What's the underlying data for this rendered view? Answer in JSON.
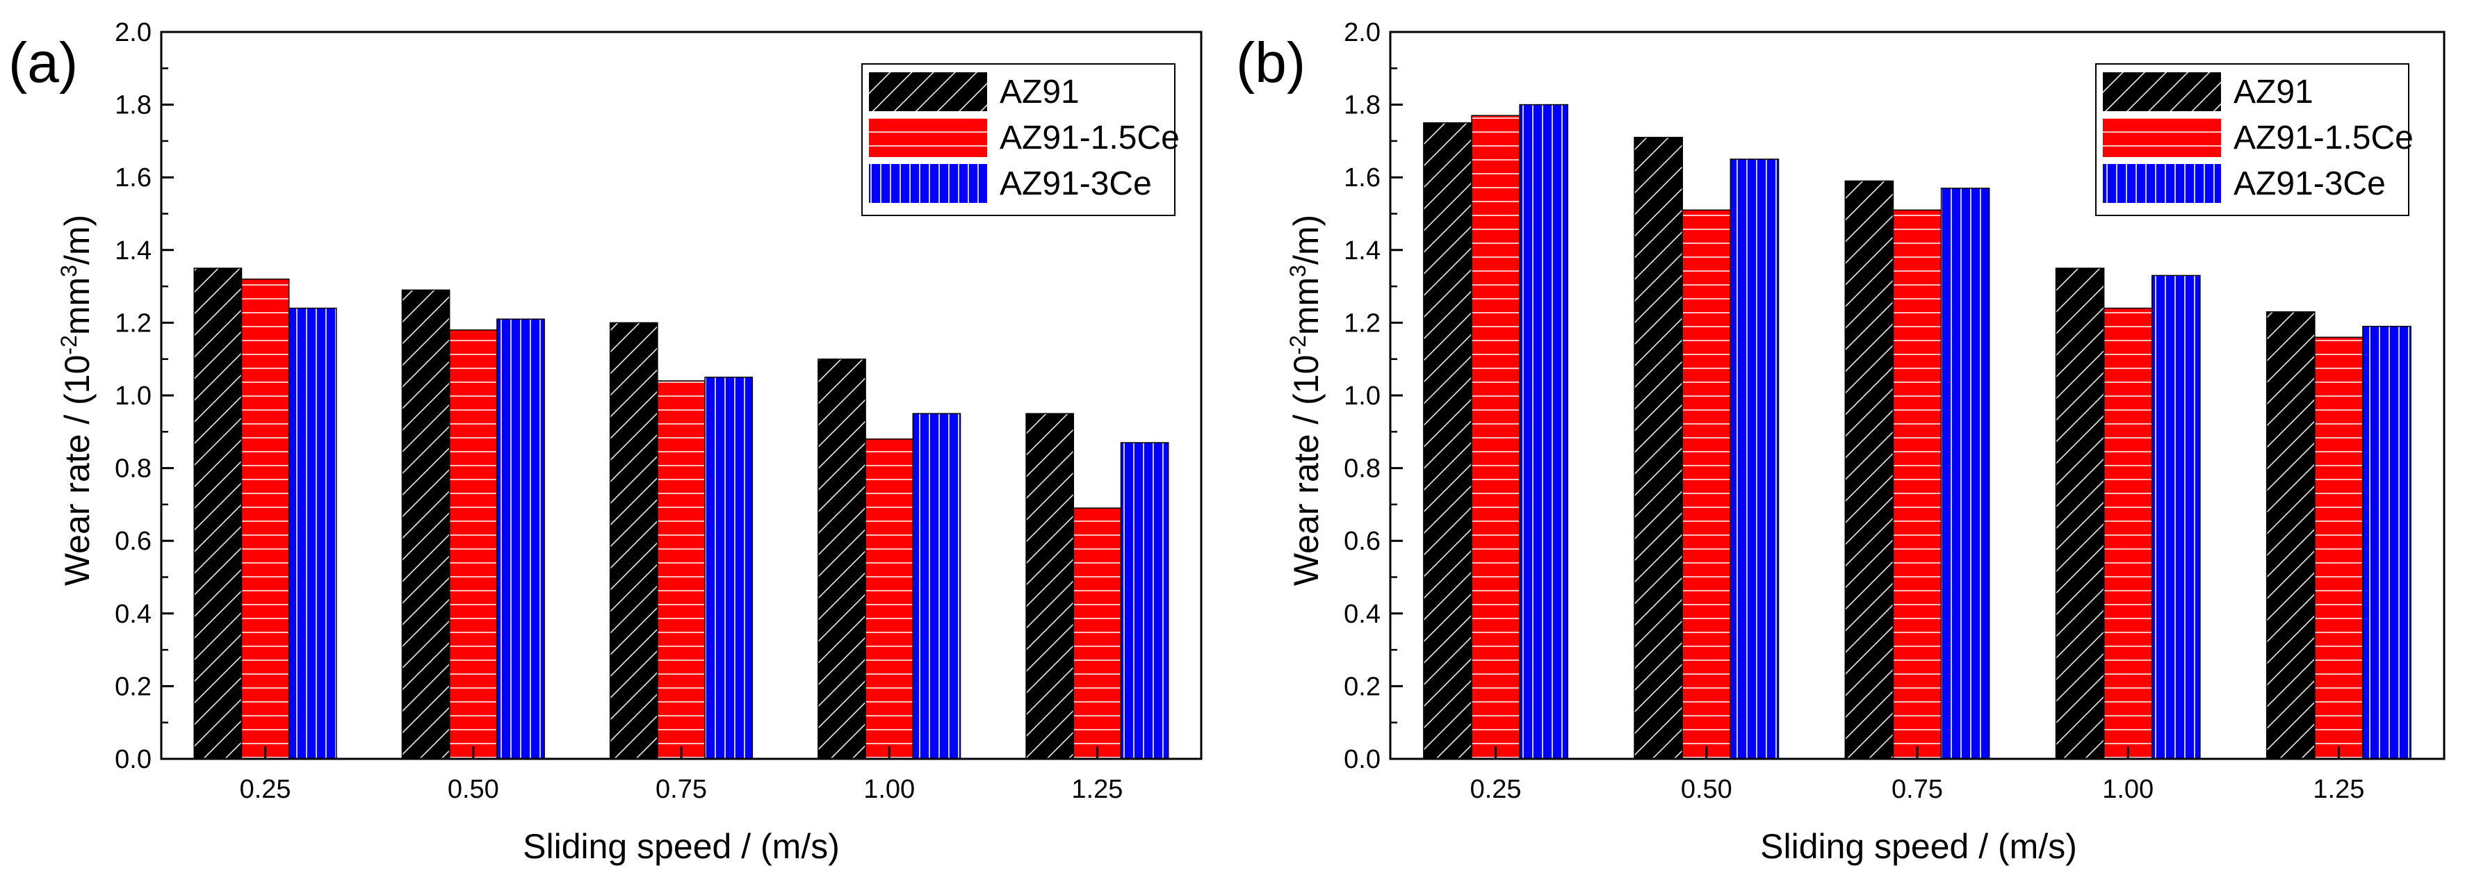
{
  "colors": {
    "AZ91": "#000000",
    "AZ91-1.5Ce": "#ff0000",
    "AZ91-3Ce": "#0000ff",
    "axis": "#000000",
    "background": "#ffffff"
  },
  "chart_data": [
    {
      "type": "bar",
      "panel_label": "(a)",
      "xlabel": "Sliding speed / (m/s)",
      "ylabel_parts": {
        "pre": "Wear rate / (10",
        "sup1": "-2",
        "mid": "mm",
        "sup2": "3",
        "post": "/m)"
      },
      "ylim": [
        0.0,
        2.0
      ],
      "yticks": [
        "0.0",
        "0.2",
        "0.4",
        "0.6",
        "0.8",
        "1.0",
        "1.2",
        "1.4",
        "1.6",
        "1.8",
        "2.0"
      ],
      "categories": [
        "0.25",
        "0.50",
        "0.75",
        "1.00",
        "1.25"
      ],
      "series": [
        {
          "name": "AZ91",
          "pattern": "diagonal",
          "values": [
            1.35,
            1.29,
            1.2,
            1.1,
            0.95
          ]
        },
        {
          "name": "AZ91-1.5Ce",
          "pattern": "horizontal",
          "values": [
            1.32,
            1.18,
            1.04,
            0.88,
            0.69
          ]
        },
        {
          "name": "AZ91-3Ce",
          "pattern": "vertical",
          "values": [
            1.24,
            1.21,
            1.05,
            0.95,
            0.87
          ]
        }
      ],
      "legend": [
        "AZ91",
        "AZ91-1.5Ce",
        "AZ91-3Ce"
      ],
      "legend_position": "top-right"
    },
    {
      "type": "bar",
      "panel_label": "(b)",
      "xlabel": "Sliding speed / (m/s)",
      "ylabel_parts": {
        "pre": "Wear rate / (10",
        "sup1": "-2",
        "mid": "mm",
        "sup2": "3",
        "post": "/m)"
      },
      "ylim": [
        0.0,
        2.0
      ],
      "yticks": [
        "0.0",
        "0.2",
        "0.4",
        "0.6",
        "0.8",
        "1.0",
        "1.2",
        "1.4",
        "1.6",
        "1.8",
        "2.0"
      ],
      "categories": [
        "0.25",
        "0.50",
        "0.75",
        "1.00",
        "1.25"
      ],
      "series": [
        {
          "name": "AZ91",
          "pattern": "diagonal",
          "values": [
            1.75,
            1.71,
            1.59,
            1.35,
            1.23
          ]
        },
        {
          "name": "AZ91-1.5Ce",
          "pattern": "horizontal",
          "values": [
            1.77,
            1.51,
            1.51,
            1.24,
            1.16
          ]
        },
        {
          "name": "AZ91-3Ce",
          "pattern": "vertical",
          "values": [
            1.8,
            1.65,
            1.57,
            1.33,
            1.19
          ]
        }
      ],
      "legend": [
        "AZ91",
        "AZ91-1.5Ce",
        "AZ91-3Ce"
      ],
      "legend_position": "top-right"
    }
  ]
}
